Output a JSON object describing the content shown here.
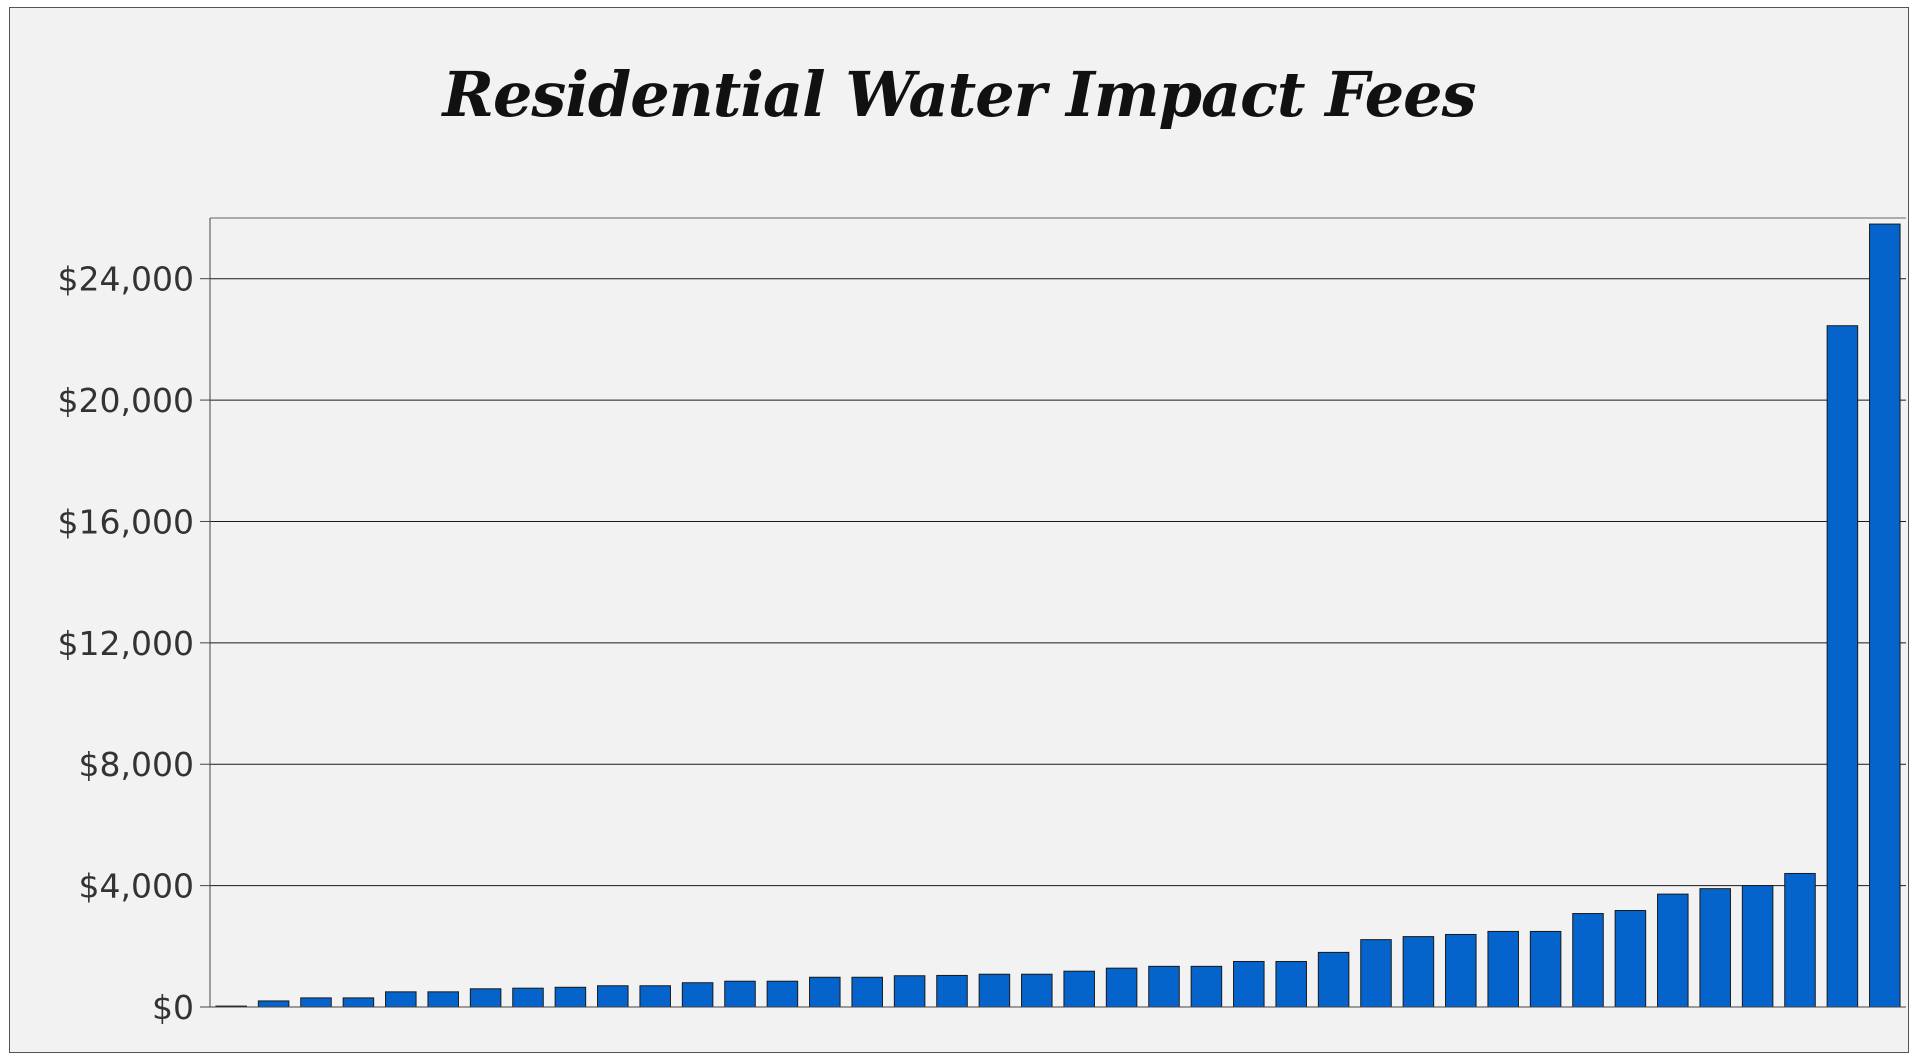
{
  "chart_data": {
    "type": "bar",
    "title": "Residential Water Impact Fees",
    "xlabel": "",
    "ylabel": "",
    "ylim": [
      0,
      26000
    ],
    "yticks": [
      0,
      4000,
      8000,
      12000,
      16000,
      20000,
      24000
    ],
    "ytick_labels": [
      "$0",
      "$4,000",
      "$8,000",
      "$12,000",
      "$16,000",
      "$20,000",
      "$24,000"
    ],
    "grid": true,
    "legend": "none",
    "bar_color": "#0563cc",
    "values": [
      30,
      200,
      300,
      300,
      500,
      500,
      600,
      620,
      650,
      700,
      700,
      800,
      850,
      850,
      980,
      980,
      1030,
      1040,
      1080,
      1080,
      1180,
      1280,
      1340,
      1340,
      1500,
      1500,
      1800,
      2220,
      2320,
      2390,
      2490,
      2490,
      3080,
      3180,
      3720,
      3900,
      4000,
      4400,
      22450,
      25800
    ]
  }
}
